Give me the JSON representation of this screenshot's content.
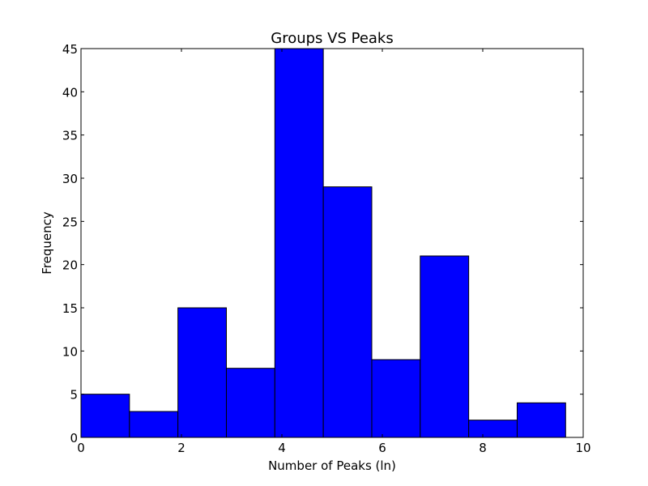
{
  "chart_data": {
    "type": "bar",
    "title": "Groups VS Peaks",
    "xlabel": "Number of Peaks (ln)",
    "ylabel": "Frequency",
    "xlim": [
      0,
      10
    ],
    "ylim": [
      0,
      45
    ],
    "bin_edges": [
      0,
      0.965,
      1.93,
      2.895,
      3.86,
      4.825,
      5.79,
      6.755,
      7.72,
      8.685,
      9.65
    ],
    "values": [
      5,
      3,
      15,
      8,
      45,
      29,
      9,
      21,
      2,
      4
    ],
    "xticks": [
      0,
      2,
      4,
      6,
      8,
      10
    ],
    "yticks": [
      0,
      5,
      10,
      15,
      20,
      25,
      30,
      35,
      40,
      45
    ],
    "bar_color": "#0000ff",
    "edge_color": "#000000",
    "grid": false,
    "legend": "none"
  }
}
